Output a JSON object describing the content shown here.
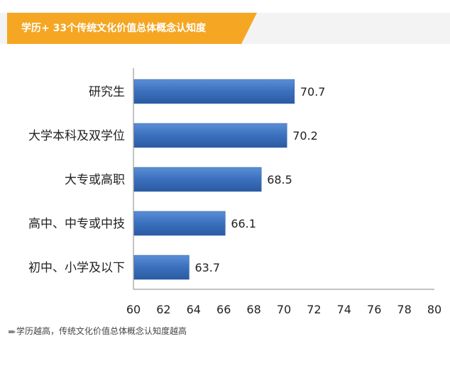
{
  "header": {
    "title": "学历+ 33个传统文化价值总体概念认知度"
  },
  "footnote": {
    "text": "学历越高，传统文化价值总体概念认知度越高"
  },
  "colors": {
    "accent": "#f5a623",
    "bar": "#3d72c0",
    "bar_dark": "#2b5aa2",
    "axis": "#8a8a8a"
  },
  "chart_data": {
    "type": "bar",
    "orientation": "horizontal",
    "title": "",
    "xlabel": "",
    "ylabel": "",
    "categories": [
      "研究生",
      "大学本科及双学位",
      "大专或高职",
      "高中、中专或中技",
      "初中、小学及以下"
    ],
    "values": [
      70.7,
      70.2,
      68.5,
      66.1,
      63.7
    ],
    "value_labels": [
      "70.7",
      "70.2",
      "68.5",
      "66.1",
      "63.7"
    ],
    "xlim": [
      60,
      80
    ],
    "xticks": [
      60,
      62,
      64,
      66,
      68,
      70,
      72,
      74,
      76,
      78,
      80
    ],
    "grid": false,
    "legend": "none"
  }
}
